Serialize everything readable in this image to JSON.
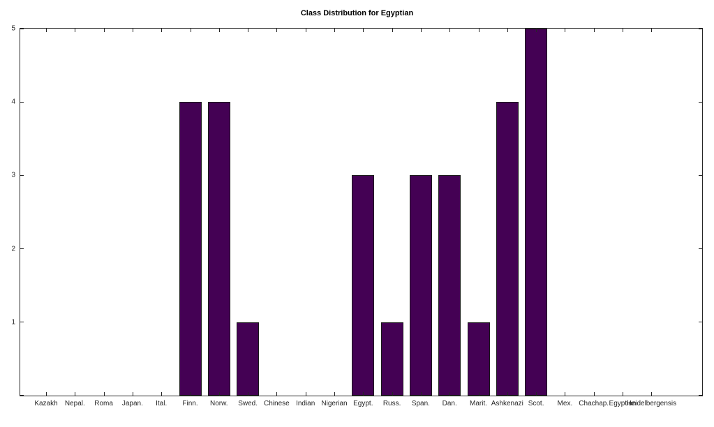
{
  "chart_data": {
    "type": "bar",
    "title": "Class Distribution for Egyptian",
    "categories": [
      "Kazakh",
      "Nepal.",
      "Roma",
      "Japan.",
      "Ital.",
      "Finn.",
      "Norw.",
      "Swed.",
      "Chinese",
      "Indian",
      "Nigerian",
      "Egypt.",
      "Russ.",
      "Span.",
      "Dan.",
      "Marit.",
      "Ashkenazi",
      "Scot.",
      "Mex.",
      "Chachap.",
      "Egyptian",
      "Heidelbergensis"
    ],
    "values": [
      0,
      0,
      0,
      0,
      0,
      4,
      4,
      1,
      0,
      0,
      0,
      3,
      1,
      3,
      3,
      1,
      4,
      5,
      0,
      0,
      0,
      0
    ],
    "xlabel": "",
    "ylabel": "",
    "ylim": [
      0,
      5
    ],
    "y_tick_marks": [
      0,
      1,
      2,
      3,
      4,
      5
    ],
    "y_tick_labels": [
      "1",
      "2",
      "3",
      "4",
      "5"
    ],
    "grid": false,
    "legend": "none",
    "bar_color": "#440154",
    "bar_edge_color": "#1a1a1a",
    "axis_color": "#262626",
    "background_color": "#ffffff"
  }
}
